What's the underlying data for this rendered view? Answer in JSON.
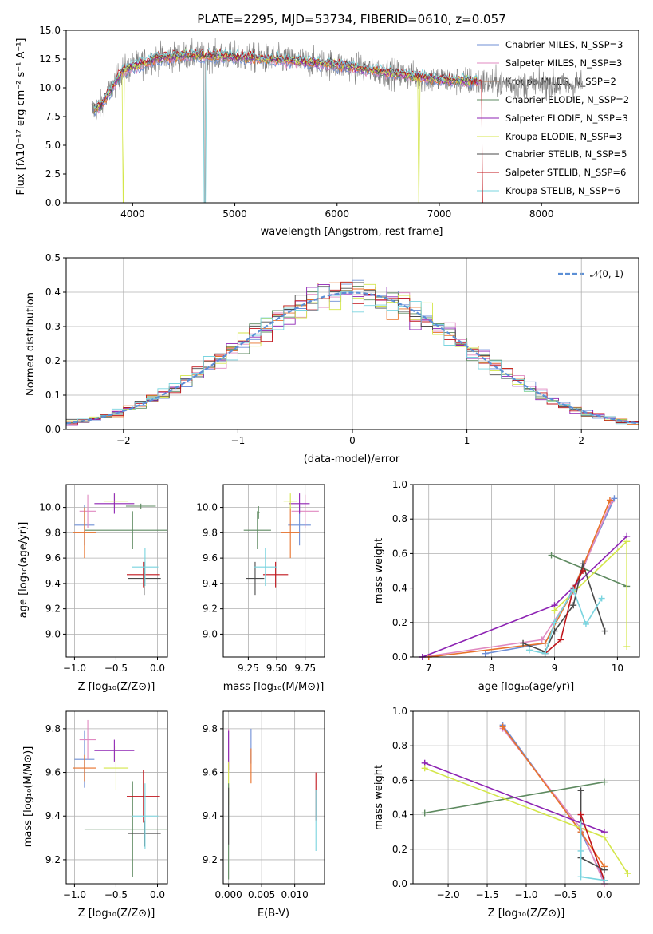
{
  "colors": [
    "#6f8fd6",
    "#e089c1",
    "#e8722a",
    "#5e8a60",
    "#8d23b3",
    "#d4e64a",
    "#4a4a4a",
    "#c0151b",
    "#79d4df"
  ],
  "chart_data": [
    {
      "id": "spectrum",
      "type": "line",
      "title": "PLATE=2295, MJD=53734, FIBERID=0610, z=0.057",
      "xlabel": "wavelength [Angstrom, rest frame]",
      "ylabel": "Flux [fλ10⁻¹⁷ erg cm⁻² s⁻¹ A⁻¹]",
      "xlim": [
        3350,
        8950
      ],
      "ylim": [
        0,
        15
      ],
      "xticks": [
        4000,
        5000,
        6000,
        7000,
        8000
      ],
      "yticks": [
        0.0,
        2.5,
        5.0,
        7.5,
        10.0,
        12.5,
        15.0
      ],
      "xtick_labels": [
        "4000",
        "5000",
        "6000",
        "7000",
        "8000"
      ],
      "ytick_labels": [
        "0.0",
        "2.5",
        "5.0",
        "7.5",
        "10.0",
        "12.5",
        "15.0"
      ],
      "legend": [
        "Chabrier MILES, N_SSP=3",
        "Salpeter MILES, N_SSP=3",
        "Kroupa MILES, N_SSP=2",
        "Chabrier ELODIE, N_SSP=2",
        "Salpeter ELODIE, N_SSP=3",
        "Kroupa ELODIE, N_SSP=3",
        "Chabrier STELIB, N_SSP=5",
        "Salpeter STELIB, N_SSP=6",
        "Kroupa STELIB, N_SSP=6"
      ],
      "data_envelope": [
        [
          3600,
          8
        ],
        [
          3700,
          8.5
        ],
        [
          3800,
          10
        ],
        [
          3900,
          11.5
        ],
        [
          4000,
          11.8
        ],
        [
          4200,
          12.5
        ],
        [
          4500,
          12.8
        ],
        [
          5000,
          12.7
        ],
        [
          5500,
          12.4
        ],
        [
          6000,
          12.0
        ],
        [
          6500,
          11.3
        ],
        [
          7000,
          10.7
        ],
        [
          7400,
          10.5
        ],
        [
          8000,
          10.2
        ],
        [
          8400,
          10.3
        ]
      ]
    },
    {
      "id": "residuals",
      "type": "line",
      "xlabel": "(data-model)/error",
      "ylabel": "Normed distribution",
      "xlim": [
        -2.5,
        2.5
      ],
      "ylim": [
        0,
        0.5
      ],
      "xticks": [
        -2,
        -1,
        0,
        1,
        2
      ],
      "yticks": [
        0.0,
        0.1,
        0.2,
        0.3,
        0.4,
        0.5
      ],
      "xtick_labels": [
        "−2",
        "−1",
        "0",
        "1",
        "2"
      ],
      "ytick_labels": [
        "0.0",
        "0.1",
        "0.2",
        "0.3",
        "0.4",
        "0.5"
      ],
      "legend": [
        "𝒩(0, 1)"
      ]
    },
    {
      "id": "age_vs_Z",
      "type": "scatter",
      "xlabel": "Z [log₁₀(Z/Z⊙)]",
      "ylabel": "age  [log₁₀(age/yr)]",
      "xlim": [
        -1.1,
        0.12
      ],
      "ylim": [
        8.82,
        10.18
      ],
      "xticks": [
        -1.0,
        -0.5,
        0.0
      ],
      "yticks": [
        9.0,
        9.2,
        9.4,
        9.6,
        9.8,
        10.0
      ],
      "xtick_labels": [
        "−1.0",
        "−0.5",
        "0.0"
      ],
      "ytick_labels": [
        "9.0",
        "9.2",
        "9.4",
        "9.6",
        "9.8",
        "10.0"
      ],
      "points": [
        {
          "x": -0.88,
          "xe": 0.12,
          "y": 9.86,
          "ye": 0.16,
          "c": 0
        },
        {
          "x": -0.84,
          "xe": 0.1,
          "y": 9.97,
          "ye": 0.13,
          "c": 1
        },
        {
          "x": -0.88,
          "xe": 0.14,
          "y": 9.8,
          "ye": 0.2,
          "c": 2
        },
        {
          "x": -0.3,
          "xe": 0.58,
          "y": 9.82,
          "ye": 0.15,
          "c": 3
        },
        {
          "x": -0.2,
          "xe": 0.18,
          "y": 10.01,
          "ye": 0.02,
          "c": 3
        },
        {
          "x": -0.52,
          "xe": 0.24,
          "y": 10.03,
          "ye": 0.08,
          "c": 4
        },
        {
          "x": -0.5,
          "xe": 0.15,
          "y": 10.05,
          "ye": 0.06,
          "c": 5
        },
        {
          "x": -0.16,
          "xe": 0.2,
          "y": 9.44,
          "ye": 0.13,
          "c": 6
        },
        {
          "x": -0.17,
          "xe": 0.2,
          "y": 9.47,
          "ye": 0.1,
          "c": 7
        },
        {
          "x": -0.15,
          "xe": 0.16,
          "y": 9.53,
          "ye": 0.15,
          "c": 8
        }
      ]
    },
    {
      "id": "age_vs_mass",
      "type": "scatter",
      "xlabel": "mass [log₁₀(M/M⊙)]",
      "ylabel": "",
      "xlim": [
        9.03,
        9.92
      ],
      "ylim": [
        8.82,
        10.18
      ],
      "xticks": [
        9.25,
        9.5,
        9.75
      ],
      "yticks": [
        9.0,
        9.2,
        9.4,
        9.6,
        9.8,
        10.0
      ],
      "xtick_labels": [
        "9.25",
        "9.50",
        "9.75"
      ],
      "ytick_labels": [
        "9.0",
        "9.2",
        "9.4",
        "9.6",
        "9.8",
        "10.0"
      ],
      "points": [
        {
          "x": 9.7,
          "xe": 0.1,
          "y": 9.86,
          "ye": 0.16,
          "c": 0
        },
        {
          "x": 9.75,
          "xe": 0.12,
          "y": 9.97,
          "ye": 0.13,
          "c": 1
        },
        {
          "x": 9.62,
          "xe": 0.08,
          "y": 9.8,
          "ye": 0.2,
          "c": 2
        },
        {
          "x": 9.33,
          "xe": 0.12,
          "y": 9.82,
          "ye": 0.15,
          "c": 3
        },
        {
          "x": 9.34,
          "xe": 0.01,
          "y": 9.96,
          "ye": 0.05,
          "c": 3
        },
        {
          "x": 9.7,
          "xe": 0.09,
          "y": 10.03,
          "ye": 0.08,
          "c": 4
        },
        {
          "x": 9.62,
          "xe": 0.06,
          "y": 10.05,
          "ye": 0.06,
          "c": 5
        },
        {
          "x": 9.31,
          "xe": 0.08,
          "y": 9.44,
          "ye": 0.13,
          "c": 6
        },
        {
          "x": 9.49,
          "xe": 0.11,
          "y": 9.47,
          "ye": 0.1,
          "c": 7
        },
        {
          "x": 9.4,
          "xe": 0.1,
          "y": 9.53,
          "ye": 0.15,
          "c": 8
        }
      ]
    },
    {
      "id": "weight_vs_age",
      "type": "line",
      "xlabel": "age  [log₁₀(age/yr)]",
      "ylabel": "mass weight",
      "xlim": [
        6.75,
        10.35
      ],
      "ylim": [
        0,
        1.0
      ],
      "xticks": [
        7,
        8,
        9,
        10
      ],
      "yticks": [
        0.0,
        0.2,
        0.4,
        0.6,
        0.8,
        1.0
      ],
      "xtick_labels": [
        "7",
        "8",
        "9",
        "10"
      ],
      "ytick_labels": [
        "0.0",
        "0.2",
        "0.4",
        "0.6",
        "0.8",
        "1.0"
      ],
      "lines": [
        {
          "c": 0,
          "x": [
            7.9,
            8.85,
            9.3,
            9.95
          ],
          "y": [
            0.02,
            0.08,
            0.4,
            0.92
          ]
        },
        {
          "c": 1,
          "x": [
            6.9,
            8.8,
            9.3,
            9.9
          ],
          "y": [
            0.0,
            0.1,
            0.38,
            0.9
          ]
        },
        {
          "c": 2,
          "x": [
            7.0,
            8.85,
            9.3,
            9.88
          ],
          "y": [
            0.0,
            0.08,
            0.39,
            0.91
          ]
        },
        {
          "c": 3,
          "x": [
            8.95,
            10.15
          ],
          "y": [
            0.59,
            0.41
          ]
        },
        {
          "c": 4,
          "x": [
            6.9,
            9.0,
            10.15
          ],
          "y": [
            0.0,
            0.3,
            0.7
          ]
        },
        {
          "c": 5,
          "x": [
            9.0,
            10.15,
            10.15
          ],
          "y": [
            0.27,
            0.67,
            0.06
          ]
        },
        {
          "c": 6,
          "x": [
            8.5,
            8.85,
            9.0,
            9.3,
            9.45,
            9.8
          ],
          "y": [
            0.08,
            0.03,
            0.15,
            0.3,
            0.54,
            0.15
          ]
        },
        {
          "c": 7,
          "x": [
            8.85,
            9.1,
            9.3,
            9.45
          ],
          "y": [
            0.02,
            0.1,
            0.4,
            0.5
          ]
        },
        {
          "c": 8,
          "x": [
            8.6,
            8.85,
            9.0,
            9.3,
            9.5,
            9.75
          ],
          "y": [
            0.04,
            0.02,
            0.2,
            0.39,
            0.19,
            0.34
          ]
        }
      ]
    },
    {
      "id": "mass_vs_Z",
      "type": "scatter",
      "xlabel": "Z [log₁₀(Z/Z⊙)]",
      "ylabel": "mass [log₁₀(M/M⊙)]",
      "xlim": [
        -1.1,
        0.12
      ],
      "ylim": [
        9.09,
        9.88
      ],
      "xticks": [
        -1.0,
        -0.5,
        0.0
      ],
      "yticks": [
        9.2,
        9.4,
        9.6,
        9.8
      ],
      "xtick_labels": [
        "−1.0",
        "−0.5",
        "0.0"
      ],
      "ytick_labels": [
        "9.2",
        "9.4",
        "9.6",
        "9.8"
      ],
      "points": [
        {
          "x": -0.88,
          "xe": 0.12,
          "y": 9.66,
          "ye": 0.13,
          "c": 0
        },
        {
          "x": -0.84,
          "xe": 0.1,
          "y": 9.75,
          "ye": 0.09,
          "c": 1
        },
        {
          "x": -0.88,
          "xe": 0.14,
          "y": 9.62,
          "ye": 0.06,
          "c": 2
        },
        {
          "x": -0.3,
          "xe": 0.58,
          "y": 9.34,
          "ye": 0.22,
          "c": 3
        },
        {
          "x": -0.52,
          "xe": 0.24,
          "y": 9.7,
          "ye": 0.05,
          "c": 4
        },
        {
          "x": -0.5,
          "xe": 0.15,
          "y": 9.62,
          "ye": 0.1,
          "c": 5
        },
        {
          "x": -0.16,
          "xe": 0.2,
          "y": 9.32,
          "ye": 0.06,
          "c": 6
        },
        {
          "x": -0.17,
          "xe": 0.2,
          "y": 9.49,
          "ye": 0.12,
          "c": 7
        },
        {
          "x": -0.15,
          "xe": 0.16,
          "y": 9.4,
          "ye": 0.15,
          "c": 8
        }
      ]
    },
    {
      "id": "mass_vs_EBV",
      "type": "scatter",
      "xlabel": "E(B-V)",
      "ylabel": "",
      "xlim": [
        -0.0008,
        0.0145
      ],
      "ylim": [
        9.09,
        9.88
      ],
      "xticks": [
        0.0,
        0.005,
        0.01
      ],
      "yticks": [
        9.2,
        9.4,
        9.6,
        9.8
      ],
      "xtick_labels": [
        "0.000",
        "0.005",
        "0.010"
      ],
      "ytick_labels": [
        "9.2",
        "9.4",
        "9.6",
        "9.8"
      ],
      "points": [
        {
          "x": 0.0,
          "y": 9.7,
          "ye": 0.1,
          "c": 1
        },
        {
          "x": 0.0,
          "y": 9.7,
          "ye": 0.09,
          "c": 4
        },
        {
          "x": 0.0,
          "y": 9.55,
          "ye": 0.1,
          "c": 5
        },
        {
          "x": 0.0,
          "y": 9.33,
          "ye": 0.22,
          "c": 3
        },
        {
          "x": 0.0,
          "y": 9.4,
          "ye": 0.13,
          "c": 6
        },
        {
          "x": 0.0034,
          "y": 9.72,
          "ye": 0.08,
          "c": 0
        },
        {
          "x": 0.0034,
          "y": 9.63,
          "ye": 0.08,
          "c": 2
        },
        {
          "x": 0.0132,
          "y": 9.49,
          "ye": 0.11,
          "c": 7
        },
        {
          "x": 0.0132,
          "y": 9.38,
          "ye": 0.14,
          "c": 8
        }
      ]
    },
    {
      "id": "weight_vs_Z",
      "type": "line",
      "xlabel": "Z [log₁₀(Z/Z⊙)]",
      "ylabel": "mass weight",
      "xlim": [
        -2.45,
        0.45
      ],
      "ylim": [
        0,
        1.0
      ],
      "xticks": [
        -2.0,
        -1.5,
        -1.0,
        -0.5,
        0.0
      ],
      "yticks": [
        0.0,
        0.2,
        0.4,
        0.6,
        0.8,
        1.0
      ],
      "xtick_labels": [
        "−2.0",
        "−1.5",
        "−1.0",
        "−0.5",
        "0.0"
      ],
      "ytick_labels": [
        "0.0",
        "0.2",
        "0.4",
        "0.6",
        "0.8",
        "1.0"
      ],
      "lines": [
        {
          "c": 0,
          "x": [
            -1.3,
            -0.3,
            0.0
          ],
          "y": [
            0.92,
            0.3,
            0.02
          ]
        },
        {
          "c": 1,
          "x": [
            -1.3,
            -0.3,
            0.0
          ],
          "y": [
            0.9,
            0.32,
            0.0
          ]
        },
        {
          "c": 2,
          "x": [
            -1.3,
            -0.3,
            0.0
          ],
          "y": [
            0.91,
            0.3,
            0.1
          ]
        },
        {
          "c": 3,
          "x": [
            -2.3,
            0.0
          ],
          "y": [
            0.41,
            0.59
          ]
        },
        {
          "c": 4,
          "x": [
            -2.3,
            0.0
          ],
          "y": [
            0.7,
            0.3
          ]
        },
        {
          "c": 5,
          "x": [
            -2.3,
            0.0,
            0.3
          ],
          "y": [
            0.67,
            0.27,
            0.06
          ]
        },
        {
          "c": 6,
          "x": [
            -0.3,
            -0.3,
            0.0
          ],
          "y": [
            0.54,
            0.15,
            0.08
          ]
        },
        {
          "c": 7,
          "x": [
            -0.3,
            0.0
          ],
          "y": [
            0.4,
            0.02
          ]
        },
        {
          "c": 8,
          "x": [
            -0.3,
            -0.3,
            -0.3,
            0.0
          ],
          "y": [
            0.34,
            0.19,
            0.04,
            0.02
          ]
        }
      ]
    }
  ]
}
